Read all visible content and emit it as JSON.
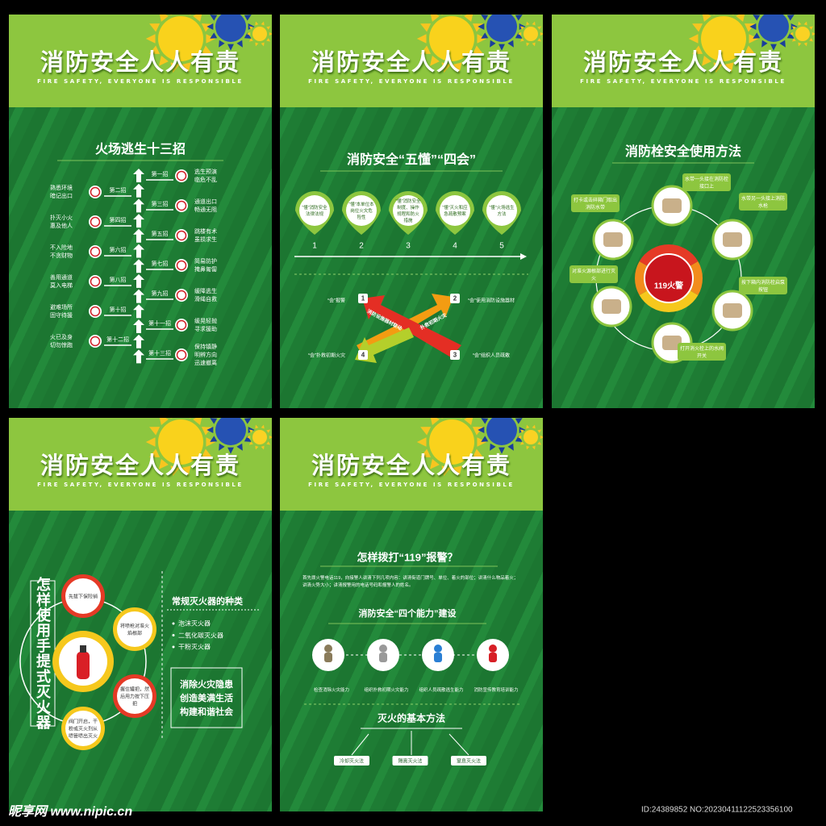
{
  "header": {
    "title": "消防安全人人有责",
    "subtitle": "FIRE SAFETY, EVERYONE IS RESPONSIBLE"
  },
  "escape": {
    "title": "火场逃生十三招",
    "left": [
      {
        "step": "第二招",
        "text": "熟悉环境暗记出口"
      },
      {
        "step": "第四招",
        "text": "扑灭小火惠及他人"
      },
      {
        "step": "第六招",
        "text": "不入险地不贪财物"
      },
      {
        "step": "第八招",
        "text": "善用通道莫入电梯"
      },
      {
        "step": "第十招",
        "text": "避难场所固守待援"
      },
      {
        "step": "第十二招",
        "text": "火已及身切勿惊跑"
      }
    ],
    "right": [
      {
        "step": "第一招",
        "text": "逃生预演临危不乱"
      },
      {
        "step": "第三招",
        "text": "通道出口畅通无阻"
      },
      {
        "step": "第五招",
        "text": "跳楼有术虽损求生"
      },
      {
        "step": "第七招",
        "text": "简易防护掩鼻匍匐"
      },
      {
        "step": "第九招",
        "text": "缓降逃生滑绳自救"
      },
      {
        "step": "第十一招",
        "text": "缓晃轻抛寻求援助"
      },
      {
        "step": "第十三招",
        "text": "保持镇静明辨方向迅速撤离"
      }
    ]
  },
  "five": {
    "title": "消防安全“五懂”“四会”",
    "understand": [
      {
        "number": "1",
        "text": "“懂”消防安全法律法规"
      },
      {
        "number": "2",
        "text": "“懂”本单位本岗位火灾危险性"
      },
      {
        "number": "3",
        "text": "“懂”消防安全制度、操作规程和防火措施"
      },
      {
        "number": "4",
        "text": "“懂”灭火和应急疏散预案"
      },
      {
        "number": "5",
        "text": "“懂”火场逃生方法"
      }
    ],
    "abilities": [
      {
        "number": "1",
        "text": "“会”报警"
      },
      {
        "number": "2",
        "text": "“会”使用消防设施器材"
      },
      {
        "number": "3",
        "text": "“会”组织人员疏散"
      },
      {
        "number": "4",
        "text": "“会”扑救初期火灾"
      }
    ],
    "arrow_texts": [
      "消防设施器材联动",
      "扑救初期火灾"
    ]
  },
  "hydrant": {
    "title": "消防栓安全使用方法",
    "center": "119火警",
    "steps": [
      "水带一头接在消防栓接口上",
      "水带另一头接上消防水枪",
      "按下箱内消防栓启泵按钮",
      "打开消火栓上的水阀开关",
      "对准火源根部进行灭火",
      "打卡或击碎箱门取出消防水带"
    ]
  },
  "extinguisher": {
    "title": "怎样使用手提式灭火器",
    "steps": [
      "先拔下保险销",
      "将喷枪对准火焰根部",
      "握住罐把，然后用力按下压把",
      "阀门开启，干粉或灭火剂从喷管喷出灭火"
    ],
    "types_title": "常规灭火器的种类",
    "types": [
      "泡沫灭火器",
      "二氧化碳灭火器",
      "干粉灭火器"
    ],
    "slogan": [
      "消除火灾隐患",
      "创造美满生活",
      "构建和谐社会"
    ]
  },
  "alarm": {
    "title": "怎样拨打“119”报警？",
    "text": "首先拨火警电话119，向接警人讲清下列几项内容：讲清街道门牌号、单位、着火的部位；讲清什么物品着火；讲清火势大小；讲清报警用的电话号码和报警人的姓名。",
    "abilities_title": "消防安全“四个能力”建设",
    "abilities": [
      "检查消除火灾能力",
      "组织扑救初期火灾能力",
      "组织人员疏散逃生能力",
      "消防宣传教育培训能力"
    ],
    "methods_title": "灭火的基本方法",
    "methods": [
      "冷却灭火法",
      "隔离灭火法",
      "窒息灭火法"
    ]
  },
  "watermark": {
    "site": "昵享网 www.nipic.cn",
    "id": "ID:24389852 NO:20230411122523356100"
  }
}
